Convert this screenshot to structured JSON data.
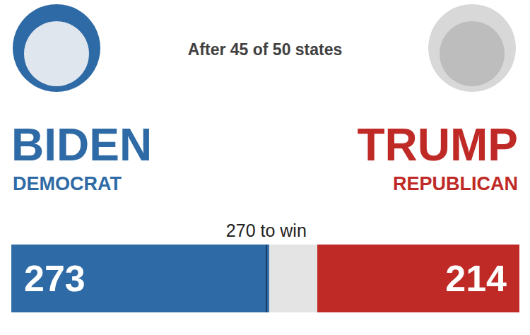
{
  "chart_data": {
    "type": "bar",
    "orientation": "horizontal",
    "title": "After 45 of 50 states",
    "categories": [
      null
    ],
    "series": [
      {
        "name": "BIDEN",
        "party": "DEMOCRAT",
        "color": "#2e6aa5",
        "values": [
          273
        ]
      },
      {
        "name": "TRUMP",
        "party": "REPUBLICAN",
        "color": "#bf2a26",
        "values": [
          214
        ]
      }
    ],
    "xlim": [
      0,
      538
    ],
    "annotations": [
      {
        "text": "270 to win",
        "value": 270
      }
    ],
    "data_labels": true,
    "tick_labels": false,
    "grid": false
  }
}
